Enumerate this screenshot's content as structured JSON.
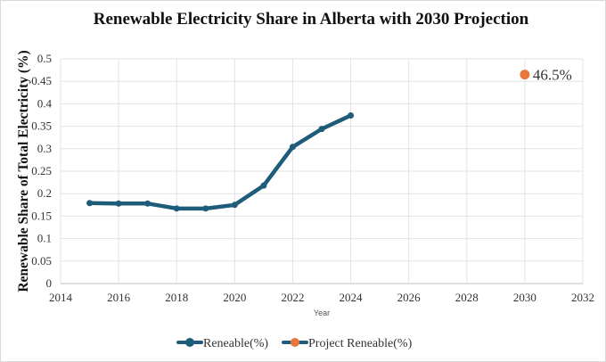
{
  "chart_data": {
    "type": "line",
    "title": "Renewable Electricity Share in Alberta with 2030 Projection",
    "xlabel": "Year",
    "ylabel": "Renewable Share of Total Electricity (%)",
    "xlim": [
      2014,
      2032
    ],
    "ylim": [
      0,
      0.5
    ],
    "xticks": [
      2014,
      2016,
      2018,
      2020,
      2022,
      2024,
      2026,
      2028,
      2030,
      2032
    ],
    "yticks": [
      0,
      0.05,
      0.1,
      0.15,
      0.2,
      0.25,
      0.3,
      0.35,
      0.4,
      0.45,
      0.5
    ],
    "xtick_labels": [
      "2014",
      "2016",
      "2018",
      "2020",
      "2022",
      "2024",
      "2026",
      "2028",
      "2030",
      "2032"
    ],
    "ytick_labels": [
      "0",
      "0.05",
      "0.1",
      "0.15",
      "0.2",
      "0.25",
      "0.3",
      "0.35",
      "0.4",
      "0.45",
      "0.5"
    ],
    "grid": true,
    "legend_position": "bottom",
    "series": [
      {
        "name": "Reneable(%)",
        "color": "#1f5c7a",
        "marker": "circle",
        "line": true,
        "x": [
          2015,
          2016,
          2017,
          2018,
          2019,
          2020,
          2021,
          2022,
          2023,
          2024
        ],
        "values": [
          0.179,
          0.178,
          0.178,
          0.167,
          0.167,
          0.175,
          0.218,
          0.304,
          0.344,
          0.374
        ]
      },
      {
        "name": "Project Reneable(%)",
        "color": "#e8793a",
        "marker": "circle",
        "line": false,
        "x": [
          2030
        ],
        "values": [
          0.465
        ]
      }
    ],
    "annotations": [
      {
        "text": "46.5%",
        "x": 2030,
        "y": 0.465
      }
    ]
  }
}
